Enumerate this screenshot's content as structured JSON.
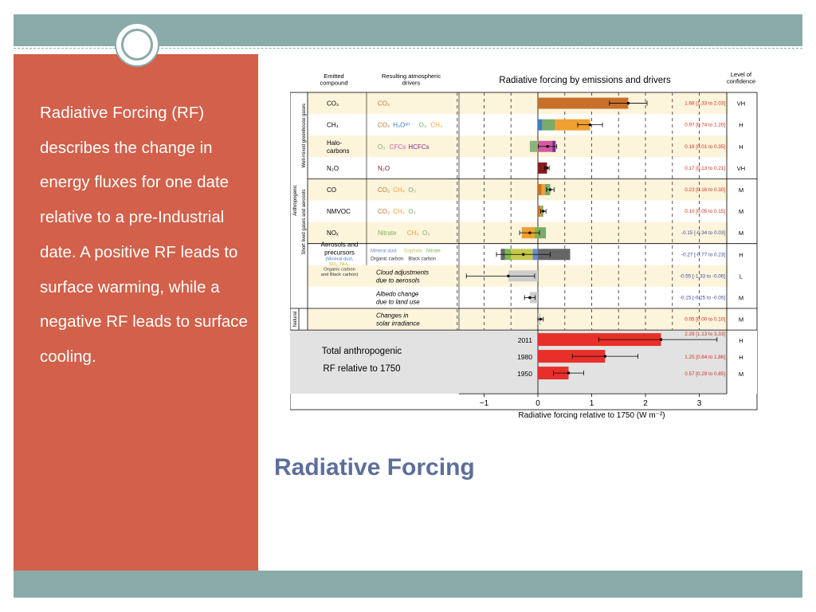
{
  "slide": {
    "title": "Radiative Forcing",
    "body": "Radiative Forcing (RF) describes the change in energy fluxes for one date relative to a pre-Industrial date. A positive RF leads to surface warming, while a negative RF leads to surface cooling."
  },
  "colors": {
    "accent_bar": "#8aabaa",
    "side_panel": "#d2604a",
    "title": "#5c6e9a"
  },
  "chart_data": {
    "type": "bar",
    "title": "Radiative forcing by emissions and drivers",
    "xlabel": "Radiative forcing relative to 1750 (W m⁻²)",
    "xlim": [
      -1.5,
      3.4
    ],
    "xticks": [
      "−1",
      "0",
      "1",
      "2",
      "3"
    ],
    "column_headers": {
      "compound": "Emitted\ncompound",
      "drivers": "Resulting atmospheric\ndrivers",
      "confidence": "Level of\nconfidence"
    },
    "group_labels": {
      "anthropogenic": "Anthropogenic",
      "wmghg": "Well-mixed greenhouse gases",
      "short_lived": "Short lived gases and aerosols",
      "natural": "Natural"
    },
    "rows": [
      {
        "compound": "CO₂",
        "drivers": [
          {
            "t": "CO₂",
            "c": "#c8702a"
          }
        ],
        "value": 1.68,
        "low": 1.33,
        "high": 2.03,
        "label": "1.68 [1.33 to 2.03]",
        "conf": "VH",
        "segments": [
          {
            "v": 1.68,
            "c": "#c8702a"
          }
        ]
      },
      {
        "compound": "CH₄",
        "drivers": [
          {
            "t": "CO₂",
            "c": "#c8702a"
          },
          {
            "t": "H₂Oˢᵗʳ",
            "c": "#3a7fc0"
          },
          {
            "t": "O₃",
            "c": "#7aab6a"
          },
          {
            "t": "CH₄",
            "c": "#f0a030"
          }
        ],
        "value": 0.97,
        "low": 0.74,
        "high": 1.2,
        "label": "0.97 [0.74 to 1.20]",
        "conf": "H",
        "segments": [
          {
            "v": 0.08,
            "c": "#3a7fc0"
          },
          {
            "v": 0.24,
            "c": "#7aab6a"
          },
          {
            "v": 0.65,
            "c": "#f0a030"
          }
        ]
      },
      {
        "compound": "Halo-\ncarbons",
        "drivers": [
          {
            "t": "O₃",
            "c": "#7aab6a"
          },
          {
            "t": "CFCs",
            "c": "#d45aa0"
          },
          {
            "t": "HCFCs",
            "c": "#7a2a8a"
          }
        ],
        "value": 0.18,
        "low": 0.01,
        "high": 0.35,
        "label": "0.18 [0.01 to 0.35]",
        "conf": "H",
        "segments": [
          {
            "v": -0.15,
            "c": "#8ab47a"
          },
          {
            "v": 0.27,
            "c": "#d45aa0"
          },
          {
            "v": 0.06,
            "c": "#7a2a8a"
          }
        ]
      },
      {
        "compound": "N₂O",
        "drivers": [
          {
            "t": "N₂O",
            "c": "#8a1a1a"
          }
        ],
        "value": 0.17,
        "low": 0.13,
        "high": 0.21,
        "label": "0.17 [0.13 to 0.21]",
        "conf": "VH",
        "segments": [
          {
            "v": 0.17,
            "c": "#8a1a1a"
          }
        ]
      },
      {
        "compound": "CO",
        "drivers": [
          {
            "t": "CO₂",
            "c": "#c8702a"
          },
          {
            "t": "CH₄",
            "c": "#f0a030"
          },
          {
            "t": "O₃",
            "c": "#7aab6a"
          }
        ],
        "value": 0.23,
        "low": 0.16,
        "high": 0.3,
        "label": "0.23 [0.16 to 0.30]",
        "conf": "M",
        "segments": [
          {
            "v": 0.07,
            "c": "#c8702a"
          },
          {
            "v": 0.06,
            "c": "#f0a030"
          },
          {
            "v": 0.1,
            "c": "#7aab6a"
          }
        ]
      },
      {
        "compound": "NMVOC",
        "drivers": [
          {
            "t": "CO₂",
            "c": "#c8702a"
          },
          {
            "t": "CH₄",
            "c": "#f0a030"
          },
          {
            "t": "O₃",
            "c": "#7aab6a"
          }
        ],
        "value": 0.1,
        "low": 0.05,
        "high": 0.15,
        "label": "0.10 [0.05 to 0.15]",
        "conf": "M",
        "segments": [
          {
            "v": 0.04,
            "c": "#c8702a"
          },
          {
            "v": 0.02,
            "c": "#f0a030"
          },
          {
            "v": 0.04,
            "c": "#7aab6a"
          }
        ]
      },
      {
        "compound": "NOₓ",
        "drivers": [
          {
            "t": "Nitrate",
            "c": "#7ab850"
          },
          {
            "t": "CH₄",
            "c": "#f0a030"
          },
          {
            "t": "O₃",
            "c": "#7aab6a"
          }
        ],
        "value": -0.15,
        "low": -0.34,
        "high": 0.03,
        "label": "-0.15 [-0.34 to 0.03]",
        "conf": "M",
        "segments": [
          {
            "v": -0.06,
            "c": "#7ab850"
          },
          {
            "v": -0.24,
            "c": "#f0a030"
          },
          {
            "v": 0.15,
            "c": "#7aab6a"
          }
        ]
      },
      {
        "compound": "Aerosols and\nprecursors",
        "sub": [
          "(Mineral dust,",
          "SO₂, NH₃,",
          "Organic carbon",
          "and Black carbon)"
        ],
        "drivers": [
          {
            "t": "Mineral dust",
            "c": "#6a8ac0"
          },
          {
            "t": "Sulphate",
            "c": "#c8c850"
          },
          {
            "t": "Nitrate",
            "c": "#7ab850"
          },
          {
            "t": "Organic carbon",
            "c": "#333333"
          },
          {
            "t": "Black carbon",
            "c": "#333333"
          }
        ],
        "value": -0.27,
        "low": -0.77,
        "high": 0.23,
        "label": "-0.27 [-0.77 to 0.23]",
        "conf": "H",
        "segments": [
          {
            "v": -0.1,
            "c": "#6a8ac0"
          },
          {
            "v": -0.4,
            "c": "#c8c850"
          },
          {
            "v": -0.11,
            "c": "#7ab850"
          },
          {
            "v": -0.08,
            "c": "#666666"
          },
          {
            "v": 0.6,
            "c": "#666666"
          }
        ]
      },
      {
        "compound": "",
        "drivers": [
          {
            "t": "Cloud adjustments\ndue to aerosols",
            "c": "#000000",
            "italic": true
          }
        ],
        "value": -0.55,
        "low": -1.33,
        "high": -0.06,
        "label": "-0.55 [-1.33 to -0.06]",
        "conf": "L",
        "segments": [
          {
            "v": -0.55,
            "c": "#cccccc"
          }
        ]
      },
      {
        "compound": "",
        "drivers": [
          {
            "t": "Albedo change\ndue to land use",
            "c": "#000000",
            "italic": true
          }
        ],
        "value": -0.15,
        "low": -0.25,
        "high": -0.05,
        "label": "-0.15 [-0.25 to -0.05]",
        "conf": "M",
        "segments": [
          {
            "v": -0.15,
            "c": "#cccccc"
          }
        ]
      },
      {
        "compound": "",
        "drivers": [
          {
            "t": "Changes in\nsolar irradiance",
            "c": "#000000",
            "italic": true
          }
        ],
        "value": 0.05,
        "low": 0.0,
        "high": 0.1,
        "label": "0.05 [0.00 to 0.10]",
        "conf": "M",
        "segments": [
          {
            "v": 0.05,
            "c": "#cccccc"
          }
        ]
      }
    ],
    "totals": {
      "label": "Total anthropogenic\nRF relative to 1750",
      "bars": [
        {
          "year": "2011",
          "value": 2.29,
          "low": 1.13,
          "high": 3.33,
          "label": "2.29 [1.13 to 3.33]",
          "conf": "H"
        },
        {
          "year": "1980",
          "value": 1.25,
          "low": 0.64,
          "high": 1.86,
          "label": "1.25 [0.64 to 1.86]",
          "conf": "H"
        },
        {
          "year": "1950",
          "value": 0.57,
          "low": 0.29,
          "high": 0.85,
          "label": "0.57 [0.29 to 0.85]",
          "conf": "M"
        }
      ],
      "color": "#e8302a"
    }
  }
}
